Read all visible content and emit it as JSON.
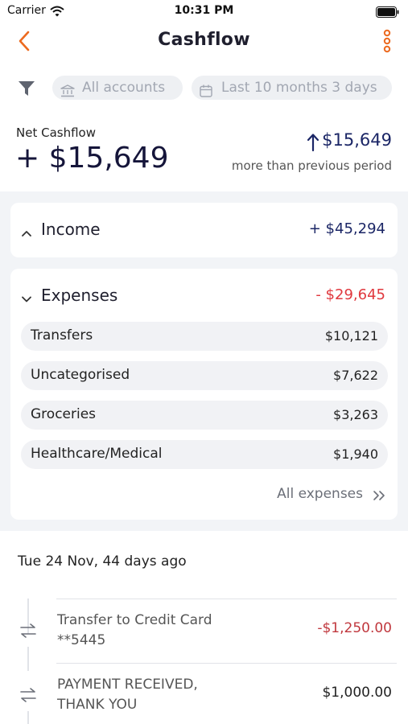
{
  "status_bar": {
    "carrier": "Carrier",
    "time": "10:31 PM"
  },
  "nav": {
    "title": "Cashflow",
    "accent_color": "#ec6a1f"
  },
  "filters": {
    "accounts_label": "All accounts",
    "period_label": "Last 10 months 3 days"
  },
  "summary": {
    "net_label": "Net Cashflow",
    "net_value": "+ $15,649",
    "change_value": "$15,649",
    "change_caption": "more than previous period"
  },
  "income": {
    "label": "Income",
    "amount": "+ $45,294"
  },
  "expenses": {
    "label": "Expenses",
    "amount": "- $29,645",
    "categories": [
      {
        "label": "Transfers",
        "amount": "$10,121"
      },
      {
        "label": "Uncategorised",
        "amount": "$7,622"
      },
      {
        "label": "Groceries",
        "amount": "$3,263"
      },
      {
        "label": "Healthcare/Medical",
        "amount": "$1,940"
      }
    ],
    "all_label": "All expenses"
  },
  "transactions": {
    "date_header": "Tue 24 Nov, 44 days ago",
    "items": [
      {
        "line1": "Transfer to Credit Card",
        "line2": "**5445",
        "amount": "-$1,250.00",
        "icon": "swap-icon"
      },
      {
        "line1": "PAYMENT RECEIVED,",
        "line2": "THANK YOU",
        "amount": "$1,000.00",
        "icon": "swap-icon"
      }
    ]
  },
  "colors": {
    "positive": "#1b2666",
    "negative": "#e0383e",
    "accent": "#ec6a1f"
  }
}
